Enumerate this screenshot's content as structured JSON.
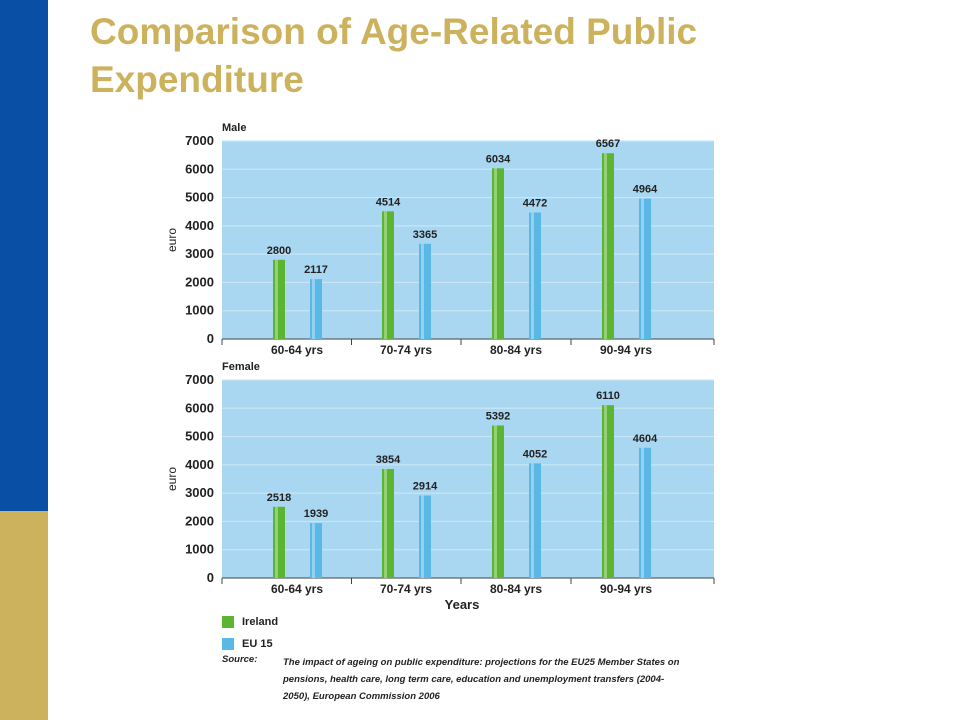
{
  "slide_title": "Comparison of Age-Related Public Expenditure",
  "chart_data": [
    {
      "type": "bar",
      "title": "Male",
      "ylabel": "euro",
      "xlabel": "",
      "ylim": [
        0,
        7000
      ],
      "yticks": [
        0,
        1000,
        2000,
        3000,
        4000,
        5000,
        6000,
        7000
      ],
      "grid": true,
      "categories": [
        "60-64 yrs",
        "70-74 yrs",
        "80-84 yrs",
        "90-94 yrs"
      ],
      "series": [
        {
          "name": "Ireland",
          "color": "#5cb531",
          "values": [
            2800,
            4514,
            6034,
            6567
          ]
        },
        {
          "name": "EU 15",
          "color": "#5ab8e6",
          "values": [
            2117,
            3365,
            4472,
            4964
          ]
        }
      ]
    },
    {
      "type": "bar",
      "title": "Female",
      "ylabel": "euro",
      "xlabel": "Years",
      "ylim": [
        0,
        7000
      ],
      "yticks": [
        0,
        1000,
        2000,
        3000,
        4000,
        5000,
        6000,
        7000
      ],
      "grid": true,
      "categories": [
        "60-64 yrs",
        "70-74 yrs",
        "80-84 yrs",
        "90-94 yrs"
      ],
      "series": [
        {
          "name": "Ireland",
          "color": "#5cb531",
          "values": [
            2518,
            3854,
            5392,
            6110
          ]
        },
        {
          "name": "EU 15",
          "color": "#5ab8e6",
          "values": [
            1939,
            2914,
            4052,
            4604
          ]
        }
      ]
    }
  ],
  "legend": [
    {
      "name": "Ireland",
      "color": "#5cb531"
    },
    {
      "name": "EU 15",
      "color": "#5ab8e6"
    }
  ],
  "source": {
    "label": "Source:",
    "text": "The impact of ageing on public expenditure: projections for the EU25 Member States on pensions, health care, long term care, education and unemployment transfers (2004-2050), European Commission 2006"
  },
  "colors": {
    "sidebar_top": "#0a4fa6",
    "sidebar_bottom": "#cdb25e",
    "title": "#cdb25e",
    "plot_bg": "#a9d6f0",
    "grid": "#c8e6f7"
  }
}
